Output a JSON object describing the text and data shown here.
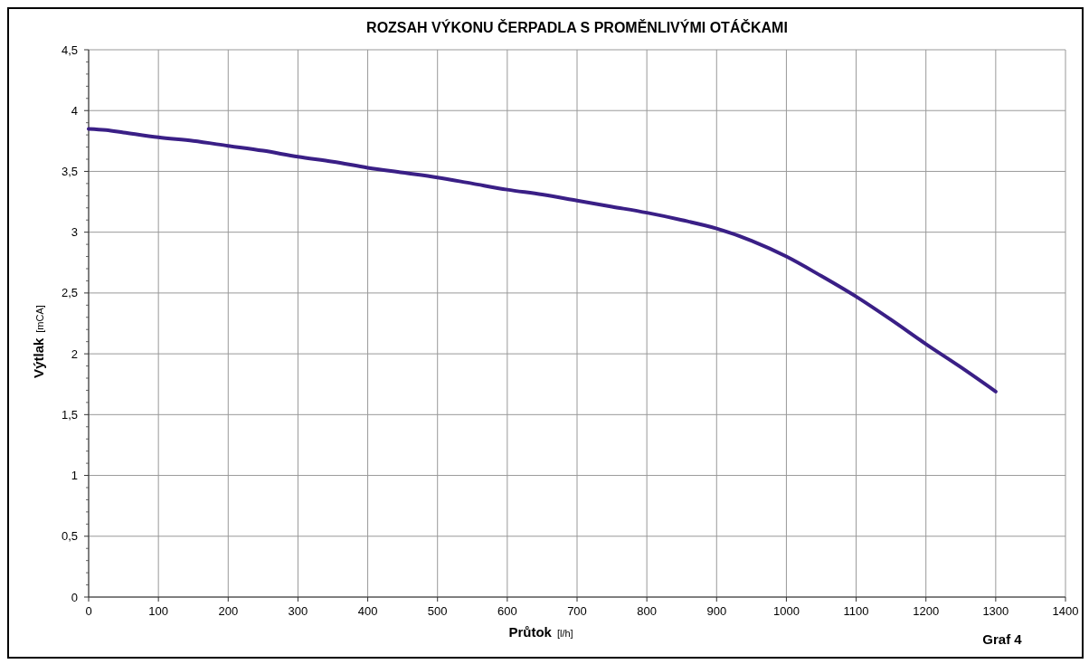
{
  "chart_data": {
    "type": "line",
    "title": "ROZSAH VÝKONU ČERPADLA S PROMĚNLIVÝMI OTÁČKAMI",
    "xlabel": "Průtok [l/h]",
    "ylabel": "Výtlak [mCA]",
    "annotations": [
      "Graf 4"
    ],
    "x": [
      0,
      25,
      50,
      100,
      150,
      200,
      250,
      300,
      350,
      400,
      450,
      500,
      550,
      600,
      650,
      700,
      750,
      800,
      850,
      900,
      950,
      1000,
      1050,
      1100,
      1150,
      1200,
      1250,
      1300
    ],
    "series": [
      {
        "color": "#3a1f86",
        "values": [
          3.85,
          3.84,
          3.82,
          3.78,
          3.75,
          3.71,
          3.67,
          3.62,
          3.58,
          3.53,
          3.49,
          3.45,
          3.4,
          3.35,
          3.31,
          3.26,
          3.21,
          3.16,
          3.1,
          3.03,
          2.93,
          2.8,
          2.64,
          2.47,
          2.28,
          2.08,
          1.89,
          1.69
        ]
      }
    ],
    "xlim": [
      0,
      1400
    ],
    "xticks": [
      0,
      100,
      200,
      300,
      400,
      500,
      600,
      700,
      800,
      900,
      1000,
      1100,
      1200,
      1300,
      1400
    ],
    "ylim": [
      0,
      4.5
    ],
    "yticks": [
      0,
      {
        "value": 0.5,
        "label": "0,5"
      },
      1,
      {
        "value": 1.5,
        "label": "1,5"
      },
      2,
      {
        "value": 2.5,
        "label": "2,5"
      },
      3,
      {
        "value": 3.5,
        "label": "3,5"
      },
      4,
      {
        "value": 4.5,
        "label": "4,5"
      }
    ],
    "grid": true,
    "marker": "none",
    "line_style": "solid"
  }
}
